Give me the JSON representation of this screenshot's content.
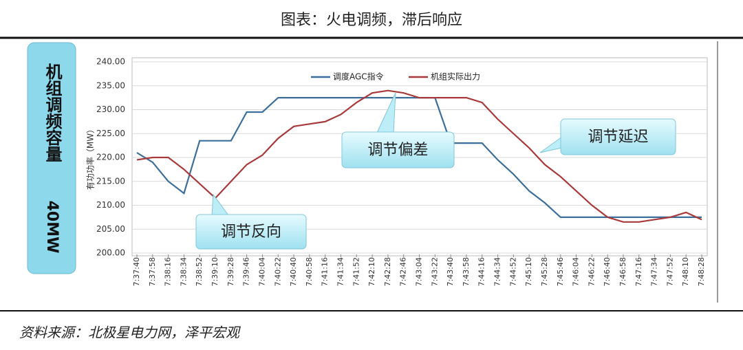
{
  "title": "图表：火电调频，滞后响应",
  "source": "资料来源：北极星电力网，泽平宏观",
  "chart_data": {
    "type": "line",
    "capacity_label": "机组调频容量",
    "capacity_value": "40MW",
    "y_label": "有功功率（MW）",
    "categories": [
      "7:37:40",
      "7:37:58",
      "7:38:16",
      "7:38:34",
      "7:38:52",
      "7:39:10",
      "7:39:28",
      "7:39:46",
      "7:40:04",
      "7:40:22",
      "7:40:40",
      "7:40:58",
      "7:41:16",
      "7:41:34",
      "7:41:52",
      "7:42:10",
      "7:42:28",
      "7:42:46",
      "7:43:04",
      "7:43:22",
      "7:43:40",
      "7:43:58",
      "7:44:16",
      "7:44:34",
      "7:44:52",
      "7:45:10",
      "7:45:28",
      "7:45:46",
      "7:46:04",
      "7:46:22",
      "7:46:40",
      "7:46:58",
      "7:47:16",
      "7:47:34",
      "7:47:52",
      "7:48:10",
      "7:48:28"
    ],
    "series": [
      {
        "name": "调度AGC指令",
        "color": "#3c6e9c",
        "values": [
          221,
          219,
          215,
          212.5,
          223.5,
          223.5,
          223.5,
          229.5,
          229.5,
          232.5,
          232.5,
          232.5,
          232.5,
          232.5,
          232.5,
          232.5,
          232.5,
          232.5,
          232.5,
          232.5,
          223,
          223,
          223,
          219.5,
          216.5,
          213,
          210.5,
          207.5,
          207.5,
          207.5,
          207.5,
          207.5,
          207.5,
          207.5,
          207.5,
          207.5,
          207.5
        ]
      },
      {
        "name": "机组实际出力",
        "color": "#a8393a",
        "values": [
          219.5,
          220,
          220,
          217.5,
          214.5,
          211.5,
          215,
          218.5,
          220.5,
          224,
          226.5,
          227,
          227.5,
          229,
          231.5,
          233.5,
          234,
          233.5,
          232.5,
          232.5,
          232.5,
          232.5,
          231.5,
          228,
          225,
          222,
          218.5,
          216,
          213,
          210,
          207.5,
          206.5,
          206.5,
          207,
          207.5,
          208.5,
          207
        ]
      }
    ],
    "ylim": [
      200,
      240
    ],
    "yticks": [
      {
        "value": 200,
        "label": "200.00"
      },
      {
        "value": 205,
        "label": "205.00"
      },
      {
        "value": 210,
        "label": "210.00"
      },
      {
        "value": 215,
        "label": "215.00"
      },
      {
        "value": 220,
        "label": "220.00"
      },
      {
        "value": 225,
        "label": "225.00"
      },
      {
        "value": 230,
        "label": "230.00"
      },
      {
        "value": 235,
        "label": "235.00"
      },
      {
        "value": 240,
        "label": "240.00"
      }
    ],
    "grid": true,
    "legend": "top",
    "annotations": [
      "调节反向",
      "调节偏差",
      "调节延迟"
    ]
  }
}
